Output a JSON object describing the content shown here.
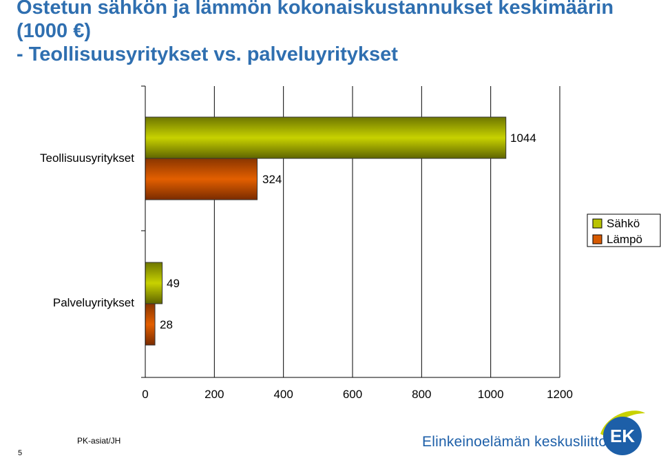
{
  "title_lines": [
    "Ostetun sähkön ja lämmön kokonaiskustannukset keskimäärin",
    "(1000 €)",
    "- Teollisuusyritykset vs. palveluyritykset"
  ],
  "chart_data": {
    "type": "bar",
    "orientation": "horizontal",
    "categories": [
      "Teollisuusyritykset",
      "Palveluyritykset"
    ],
    "series": [
      {
        "name": "Sähkö",
        "values": [
          1044,
          49
        ],
        "color": "#b9c300"
      },
      {
        "name": "Lämpö",
        "values": [
          324,
          28
        ],
        "color": "#d75a00"
      }
    ],
    "data_labels": [
      "1044",
      "324",
      "49",
      "28"
    ],
    "xlim": [
      0,
      1200
    ],
    "xticks": [
      0,
      200,
      400,
      600,
      800,
      1000,
      1200
    ],
    "tick_labels": [
      "0",
      "200",
      "400",
      "600",
      "800",
      "1000",
      "1200"
    ],
    "grid": true,
    "legend_position": "right"
  },
  "footer": {
    "page_number": "5",
    "source": "PK-asiat/JH",
    "organization": "Elinkeinoelämän keskusliitto",
    "logo_text": "EK"
  }
}
